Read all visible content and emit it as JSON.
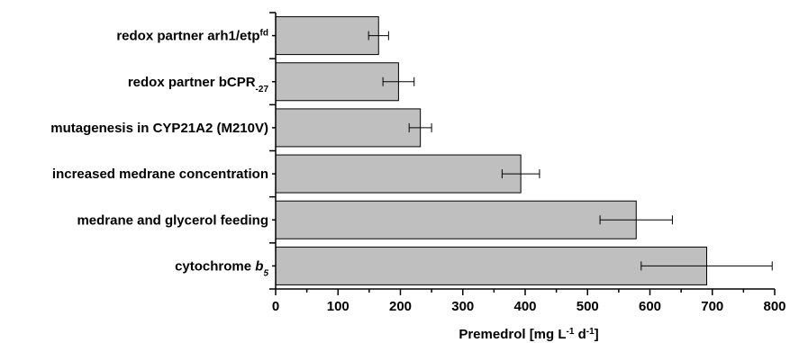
{
  "chart_data": {
    "type": "bar",
    "orientation": "horizontal",
    "categories": [
      {
        "parts": [
          {
            "t": "redox partner arh1/etp"
          },
          {
            "t": "fd",
            "sup": true
          }
        ]
      },
      {
        "parts": [
          {
            "t": "redox partner bCPR"
          },
          {
            "t": "-27",
            "sub": true
          }
        ]
      },
      {
        "parts": [
          {
            "t": "mutagenesis in CYP21A2 (M210V)"
          }
        ]
      },
      {
        "parts": [
          {
            "t": "increased medrane concentration"
          }
        ]
      },
      {
        "parts": [
          {
            "t": "medrane and glycerol feeding"
          }
        ]
      },
      {
        "parts": [
          {
            "t": "cytochrome "
          },
          {
            "t": "b",
            "italic": true
          },
          {
            "t": "5",
            "sub": true,
            "italic": true
          }
        ]
      }
    ],
    "values": [
      165,
      197,
      232,
      393,
      578,
      691
    ],
    "errors": [
      16,
      25,
      18,
      30,
      58,
      105
    ],
    "xlim": [
      0,
      800
    ],
    "xticks": [
      0,
      100,
      200,
      300,
      400,
      500,
      600,
      700,
      800
    ],
    "xlabel": {
      "parts": [
        {
          "t": "Premedrol  [mg L"
        },
        {
          "t": "-1",
          "sup": true
        },
        {
          "t": " d"
        },
        {
          "t": "-1",
          "sup": true
        },
        {
          "t": "]"
        }
      ]
    },
    "bar_color": "#bfbfbf",
    "grid": false
  }
}
